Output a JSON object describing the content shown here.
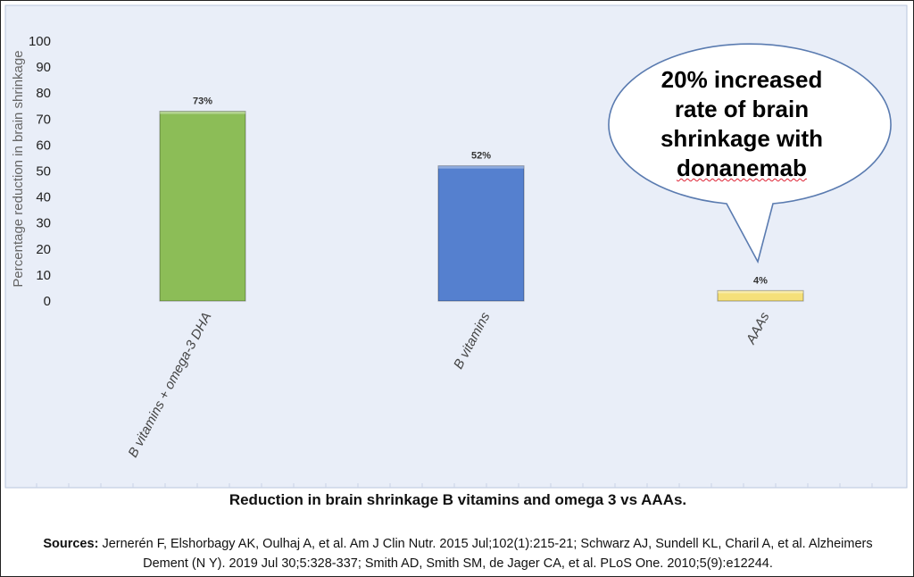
{
  "chart_data": {
    "type": "bar",
    "categories": [
      "B vitamins + omega-3 DHA",
      "B vitamins",
      "AAAs"
    ],
    "values": [
      73,
      52,
      4
    ],
    "data_labels": [
      "73%",
      "52%",
      "4%"
    ],
    "bar_colors": [
      "#8cbd57",
      "#5580cf",
      "#f5e07a"
    ],
    "ylabel": "Percentage reduction in brain shrinkage",
    "ylim": [
      0,
      100
    ],
    "yticks": [
      "0",
      "10",
      "20",
      "30",
      "40",
      "50",
      "60",
      "70",
      "80",
      "90",
      "100"
    ],
    "grid": false,
    "plot_background": "#e9eef8",
    "title": "Reduction in brain shrinkage B vitamins and omega 3 vs AAAs."
  },
  "callout": {
    "lines": [
      "20% increased",
      "rate of brain",
      "shrinkage with",
      "donanemab"
    ]
  },
  "sources": {
    "label": "Sources:",
    "text": "Jernerén F, Elshorbagy AK, Oulhaj A, et al. Am J Clin Nutr. 2015 Jul;102(1):215-21; Schwarz AJ, Sundell KL, Charil A, et al. Alzheimers Dement (N Y). 2019 Jul 30;5:328-337; Smith AD, Smith SM, de Jager CA, et al. PLoS One. 2010;5(9):e12244."
  }
}
